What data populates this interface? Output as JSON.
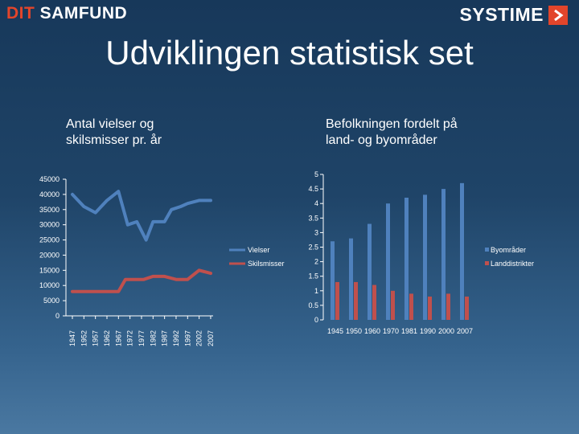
{
  "header": {
    "brand_left_accent": "DIT",
    "brand_left_rest": " SAMFUND",
    "brand_right": "SYSTIME"
  },
  "slide": {
    "title": "Udviklingen statistisk set"
  },
  "colors": {
    "blue": "#4f81bd",
    "red": "#c0504d",
    "accent": "#e2452b"
  },
  "chart_data": [
    {
      "type": "line",
      "title": "Antal vielser og skilsmisser pr. år",
      "categories": [
        "1947",
        "1952",
        "1957",
        "1962",
        "1967",
        "1972",
        "1977",
        "1982",
        "1987",
        "1992",
        "1997",
        "2002",
        "2007"
      ],
      "ylim": [
        0,
        45000
      ],
      "yticks": [
        0,
        5000,
        10000,
        15000,
        20000,
        25000,
        30000,
        35000,
        40000,
        45000
      ],
      "legend": "right",
      "series": [
        {
          "name": "Vielser",
          "color": "#4f81bd",
          "x": [
            1947,
            1952,
            1957,
            1962,
            1967,
            1971,
            1975,
            1979,
            1982,
            1987,
            1990,
            1994,
            1997,
            2002,
            2007
          ],
          "values": [
            40000,
            36000,
            34000,
            38000,
            41000,
            30000,
            31000,
            25000,
            31000,
            31000,
            35000,
            36000,
            37000,
            38000,
            38000
          ]
        },
        {
          "name": "Skilsmisser",
          "color": "#c0504d",
          "x": [
            1947,
            1952,
            1957,
            1962,
            1967,
            1970,
            1975,
            1978,
            1982,
            1987,
            1992,
            1994,
            1997,
            2002,
            2007
          ],
          "values": [
            8000,
            8000,
            8000,
            8000,
            8000,
            12000,
            12000,
            12000,
            13000,
            13000,
            12000,
            12000,
            12000,
            15000,
            14000
          ]
        }
      ]
    },
    {
      "type": "bar",
      "title": "Befolkningen fordelt på land- og byområder",
      "categories": [
        "1945",
        "1950",
        "1960",
        "1970",
        "1981",
        "1990",
        "2000",
        "2007"
      ],
      "ylim": [
        0,
        5
      ],
      "yticks": [
        "0",
        "0.5",
        "1",
        "1.5",
        "2",
        "2.5",
        "3",
        "3.5",
        "4",
        "4.5",
        "5"
      ],
      "legend": "right",
      "series": [
        {
          "name": "Byområder",
          "color": "#4f81bd",
          "values": [
            2.7,
            2.8,
            3.3,
            4.0,
            4.2,
            4.3,
            4.5,
            4.7
          ]
        },
        {
          "name": "Landdistrikter",
          "color": "#c0504d",
          "values": [
            1.3,
            1.3,
            1.2,
            1.0,
            0.9,
            0.8,
            0.9,
            0.8
          ]
        }
      ]
    }
  ]
}
